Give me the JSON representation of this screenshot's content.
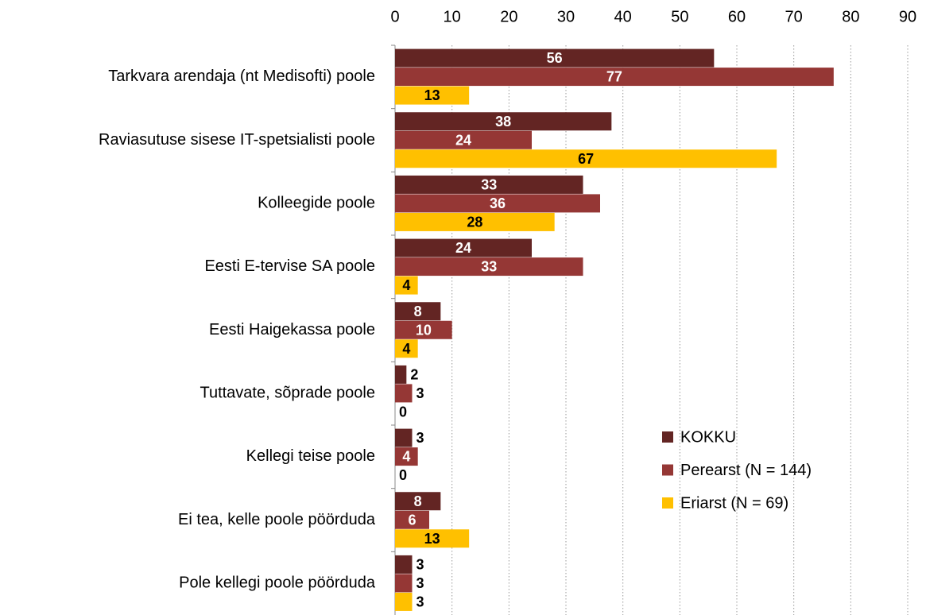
{
  "chart_data": {
    "type": "hbar",
    "categories": [
      "Tarkvara arendaja (nt Medisofti) poole",
      "Raviasutuse sisese IT-spetsialisti poole",
      "Kolleegide poole",
      "Eesti E-tervise SA poole",
      "Eesti Haigekassa poole",
      "Tuttavate, sõprade poole",
      "Kellegi teise poole",
      "Ei tea, kelle poole pöörduda",
      "Pole kellegi poole pöörduda"
    ],
    "series": [
      {
        "name": "KOKKU",
        "color": "#632523",
        "label_color": "#ffffff",
        "values": [
          56,
          38,
          33,
          24,
          8,
          2,
          3,
          8,
          3
        ]
      },
      {
        "name": "Perearst (N = 144)",
        "color": "#953735",
        "label_color": "#ffffff",
        "values": [
          77,
          24,
          36,
          33,
          10,
          3,
          4,
          6,
          3
        ]
      },
      {
        "name": "Eriarst (N = 69)",
        "color": "#ffc000",
        "label_color": "#000000",
        "values": [
          13,
          67,
          28,
          4,
          4,
          0,
          0,
          13,
          3
        ]
      }
    ],
    "xlim": [
      0,
      90
    ],
    "xticks": [
      0,
      10,
      20,
      30,
      40,
      50,
      60,
      70,
      80,
      90
    ],
    "grid": true,
    "legend": "lower right"
  }
}
